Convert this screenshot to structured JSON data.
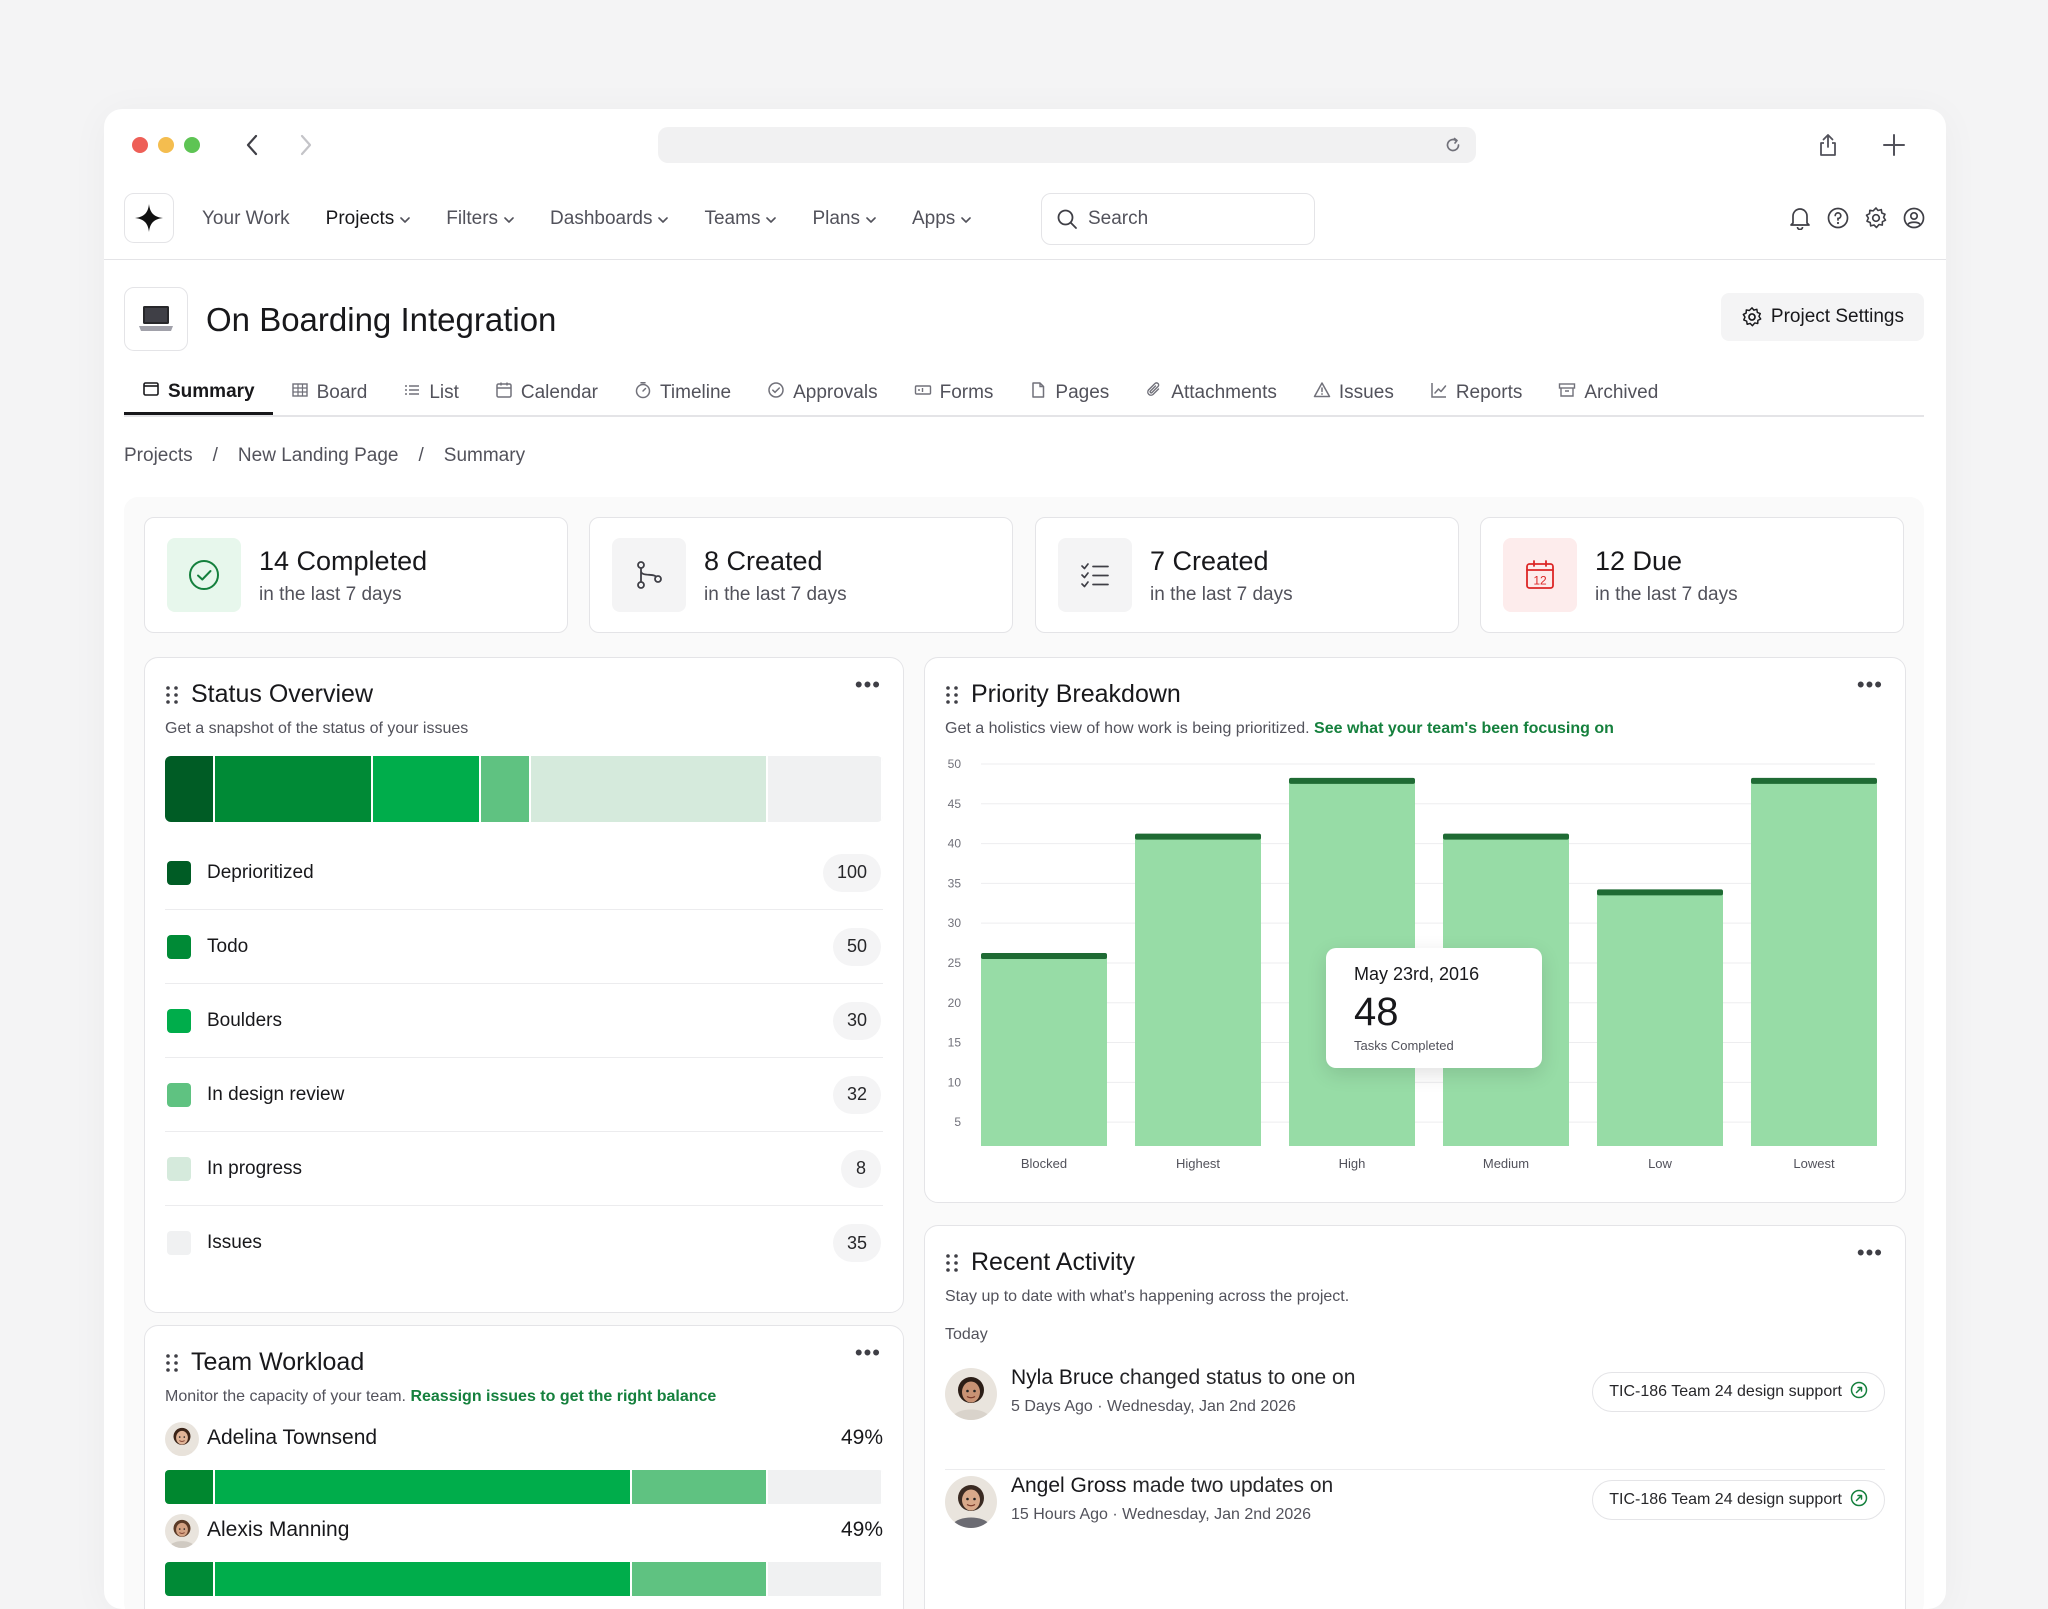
{
  "nav": {
    "items": [
      {
        "label": "Your Work",
        "dropdown": false,
        "active": false
      },
      {
        "label": "Projects",
        "dropdown": true,
        "active": true
      },
      {
        "label": "Filters",
        "dropdown": true,
        "active": false
      },
      {
        "label": "Dashboards",
        "dropdown": true,
        "active": false
      },
      {
        "label": "Teams",
        "dropdown": true,
        "active": false
      },
      {
        "label": "Plans",
        "dropdown": true,
        "active": false
      },
      {
        "label": "Apps",
        "dropdown": true,
        "active": false
      }
    ],
    "search_placeholder": "Search"
  },
  "project": {
    "title": "On Boarding Integration",
    "settings_label": "Project Settings"
  },
  "tabs": [
    {
      "label": "Summary",
      "icon": "square-icon",
      "active": true
    },
    {
      "label": "Board",
      "icon": "grid-icon",
      "active": false
    },
    {
      "label": "List",
      "icon": "list-icon",
      "active": false
    },
    {
      "label": "Calendar",
      "icon": "calendar-icon",
      "active": false
    },
    {
      "label": "Timeline",
      "icon": "timer-icon",
      "active": false
    },
    {
      "label": "Approvals",
      "icon": "check-circle-icon",
      "active": false
    },
    {
      "label": "Forms",
      "icon": "form-icon",
      "active": false
    },
    {
      "label": "Pages",
      "icon": "page-icon",
      "active": false
    },
    {
      "label": "Attachments",
      "icon": "paperclip-icon",
      "active": false
    },
    {
      "label": "Issues",
      "icon": "warning-icon",
      "active": false
    },
    {
      "label": "Reports",
      "icon": "line-chart-icon",
      "active": false
    },
    {
      "label": "Archived",
      "icon": "archive-icon",
      "active": false
    }
  ],
  "breadcrumb": [
    "Projects",
    "New Landing Page",
    "Summary"
  ],
  "stats": [
    {
      "title": "14 Completed",
      "sub": "in the last 7 days",
      "icon": "check-circle-icon",
      "bg": "#e7f7ec"
    },
    {
      "title": "8 Created",
      "sub": "in the last 7 days",
      "icon": "git-branch-icon",
      "bg": "#f4f4f5"
    },
    {
      "title": "7 Created",
      "sub": "in the last 7 days",
      "icon": "checklist-icon",
      "bg": "#f4f4f5"
    },
    {
      "title": "12 Due",
      "sub": "in the last 7 days",
      "icon": "calendar-due-icon",
      "bg": "#fdecec"
    }
  ],
  "calendar_due_day": "12",
  "status_overview": {
    "title": "Status Overview",
    "subtitle": "Get a snapshot of the status of your issues",
    "items": [
      {
        "label": "Deprioritized",
        "count": 100,
        "color": "#005c25",
        "bar_share": 0.07
      },
      {
        "label": "Todo",
        "count": 50,
        "color": "#008a36",
        "bar_share": 0.22
      },
      {
        "label": "Boulders",
        "count": 30,
        "color": "#00ad4b",
        "bar_share": 0.15
      },
      {
        "label": "In design review",
        "count": 32,
        "color": "#5fc281",
        "bar_share": 0.07
      },
      {
        "label": "In progress",
        "count": 8,
        "color": "#d5eadc",
        "bar_share": 0.33
      },
      {
        "label": "Issues",
        "count": 35,
        "color": "#f0f1f2",
        "bar_share": 0.16
      }
    ]
  },
  "priority": {
    "title": "Priority Breakdown",
    "subtitle": "Get a holistics view of how work is being prioritized.",
    "link": "See what your team's been focusing on",
    "tooltip": {
      "date": "May 23rd, 2016",
      "value": "48",
      "label": "Tasks Completed"
    }
  },
  "chart_data": {
    "type": "bar",
    "categories": [
      "Blocked",
      "Highest",
      "High",
      "Medium",
      "Low",
      "Lowest"
    ],
    "values": [
      26,
      41,
      48,
      41,
      34,
      48
    ],
    "title": "Priority Breakdown",
    "xlabel": "",
    "ylabel": "",
    "ylim": [
      2,
      50
    ],
    "yticks": [
      5,
      10,
      15,
      20,
      25,
      30,
      35,
      40,
      45,
      50
    ],
    "grid": true,
    "bar_color": "#97dca6",
    "bar_cap_color": "#1f6b34"
  },
  "activity": {
    "title": "Recent Activity",
    "subtitle": "Stay up to date with what's happening across the project.",
    "group": "Today",
    "items": [
      {
        "name": "Nyla Bruce",
        "action": "changed status to one on",
        "meta": "5 Days Ago · Wednesday, Jan 2nd 2026",
        "chip": "TIC-186 Team 24 design support"
      },
      {
        "name": "Angel Gross",
        "action": "made two updates on",
        "meta": "15 Hours Ago · Wednesday, Jan 2nd 2026",
        "chip": "TIC-186 Team 24 design support"
      }
    ]
  },
  "workload": {
    "title": "Team Workload",
    "subtitle": "Monitor the capacity of your team.",
    "link": "Reassign issues to get the right balance",
    "members": [
      {
        "name": "Adelina Townsend",
        "pct": "49%",
        "segments": [
          0.07,
          0.58,
          0.19,
          0.16
        ]
      },
      {
        "name": "Alexis Manning",
        "pct": "49%",
        "segments": [
          0.07,
          0.58,
          0.19,
          0.16
        ]
      }
    ]
  }
}
